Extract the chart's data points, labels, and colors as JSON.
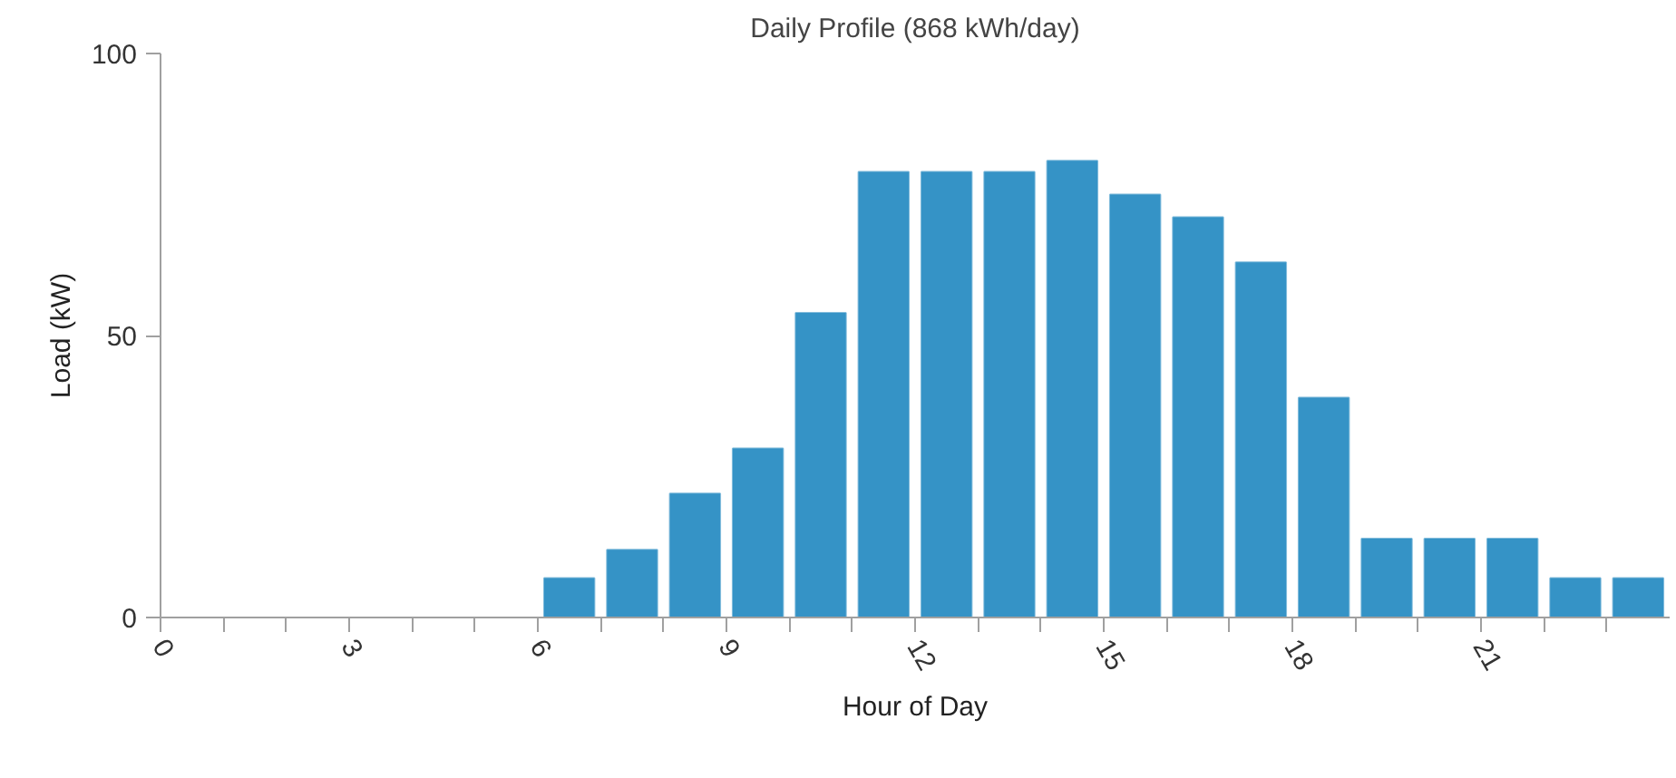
{
  "chart_data": {
    "type": "histogram",
    "title": "Daily Profile (868 kWh/day)",
    "xlabel": "Hour of Day",
    "ylabel": "Load (kW)",
    "bins": [
      0,
      1,
      2,
      3,
      4,
      5,
      6,
      7,
      8,
      9,
      10,
      11,
      12,
      13,
      14,
      15,
      16,
      17,
      18,
      19,
      20,
      21,
      22,
      23,
      24
    ],
    "values": [
      0,
      0,
      0,
      0,
      0,
      0,
      7,
      12,
      22,
      30,
      54,
      79,
      79,
      79,
      81,
      75,
      71,
      63,
      39,
      14,
      14,
      14,
      7,
      7
    ],
    "color": "#3593c6",
    "xlim": [
      0,
      24
    ],
    "xticks": [
      0,
      {
        "value": 1,
        "label": null
      },
      {
        "value": 2,
        "label": null
      },
      3,
      {
        "value": 4,
        "label": null
      },
      {
        "value": 5,
        "label": null
      },
      6,
      {
        "value": 7,
        "label": null
      },
      {
        "value": 8,
        "label": null
      },
      9,
      {
        "value": 10,
        "label": null
      },
      {
        "value": 11,
        "label": null
      },
      12,
      {
        "value": 13,
        "label": null
      },
      {
        "value": 14,
        "label": null
      },
      15,
      {
        "value": 16,
        "label": null
      },
      {
        "value": 17,
        "label": null
      },
      18,
      {
        "value": 19,
        "label": null
      },
      {
        "value": 20,
        "label": null
      },
      21,
      {
        "value": 22,
        "label": null
      },
      {
        "value": 23,
        "label": null
      }
    ],
    "ylim": [
      0,
      100
    ],
    "yticks": [
      0,
      50,
      100
    ],
    "grid": false
  }
}
